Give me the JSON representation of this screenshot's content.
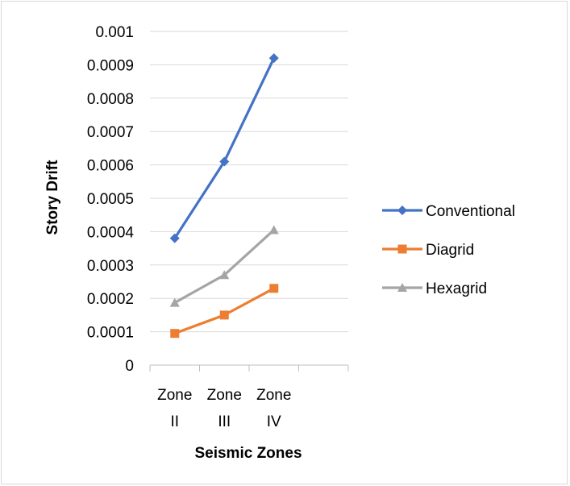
{
  "chart_data": {
    "type": "line",
    "title": "",
    "xlabel": "Seismic Zones",
    "ylabel": "Story Drift",
    "categories": [
      {
        "line1": "Zone",
        "line2": "II"
      },
      {
        "line1": "Zone",
        "line2": "III"
      },
      {
        "line1": "Zone",
        "line2": "IV"
      }
    ],
    "ylim": [
      0,
      0.001
    ],
    "yticks": [
      "0",
      "0.0001",
      "0.0002",
      "0.0003",
      "0.0004",
      "0.0005",
      "0.0006",
      "0.0007",
      "0.0008",
      "0.0009",
      "0.001"
    ],
    "grid": true,
    "legend_position": "right",
    "series": [
      {
        "name": "Conventional",
        "values": [
          0.00038,
          0.00061,
          0.00092
        ],
        "color": "#4472c4",
        "marker": "diamond"
      },
      {
        "name": "Diagrid",
        "values": [
          9.5e-05,
          0.00015,
          0.00023
        ],
        "color": "#ed7d31",
        "marker": "square"
      },
      {
        "name": "Hexagrid",
        "values": [
          0.000187,
          0.00027,
          0.000405
        ],
        "color": "#a5a5a5",
        "marker": "triangle"
      }
    ]
  }
}
